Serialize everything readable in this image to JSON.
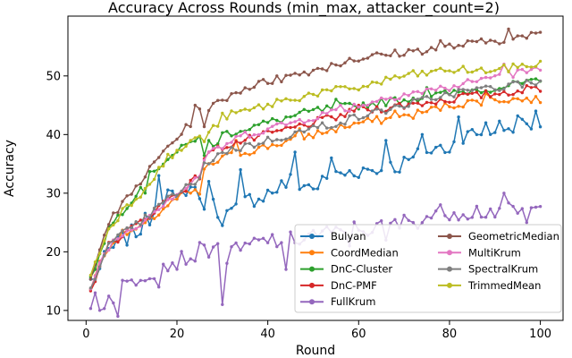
{
  "chart_data": {
    "type": "line",
    "title": "Accuracy Across Rounds (min_max, attacker_count=2)",
    "xlabel": "Round",
    "ylabel": "Accuracy",
    "xlim": [
      -4,
      105
    ],
    "ylim": [
      8.3,
      60.2
    ],
    "xticks": [
      0,
      20,
      40,
      60,
      80,
      100
    ],
    "yticks": [
      10,
      20,
      30,
      40,
      50
    ],
    "grid": false,
    "legend_position": "lower-right",
    "legend_columns": 2,
    "series": [
      {
        "name": "Bulyan",
        "color": "#1f77b4",
        "anchors": [
          [
            1,
            15
          ],
          [
            3,
            17
          ],
          [
            5,
            20
          ],
          [
            8,
            22
          ],
          [
            12,
            24
          ],
          [
            15,
            27
          ],
          [
            18,
            30
          ],
          [
            20,
            28
          ],
          [
            22,
            31
          ],
          [
            25,
            30
          ],
          [
            26,
            26
          ],
          [
            28,
            28
          ],
          [
            30,
            26
          ],
          [
            33,
            27
          ],
          [
            36,
            29
          ],
          [
            40,
            30
          ],
          [
            45,
            32
          ],
          [
            50,
            31
          ],
          [
            55,
            33
          ],
          [
            60,
            34
          ],
          [
            65,
            34
          ],
          [
            70,
            35
          ],
          [
            75,
            37
          ],
          [
            80,
            38
          ],
          [
            85,
            40
          ],
          [
            90,
            41
          ],
          [
            95,
            42
          ],
          [
            100,
            42
          ]
        ],
        "spikes": [
          [
            16,
            33
          ],
          [
            24,
            31
          ],
          [
            27,
            32
          ],
          [
            34,
            34
          ],
          [
            46,
            37
          ],
          [
            54,
            36
          ],
          [
            66,
            39
          ],
          [
            74,
            40
          ],
          [
            82,
            43
          ],
          [
            88,
            42
          ],
          [
            93,
            41
          ],
          [
            99,
            44
          ]
        ]
      },
      {
        "name": "CoordMedian",
        "color": "#ff7f0e",
        "anchors": [
          [
            1,
            14
          ],
          [
            3,
            18
          ],
          [
            5,
            21
          ],
          [
            8,
            23
          ],
          [
            12,
            24
          ],
          [
            15,
            26
          ],
          [
            18,
            28
          ],
          [
            22,
            30
          ],
          [
            25,
            30
          ],
          [
            26,
            34
          ],
          [
            30,
            36
          ],
          [
            35,
            37
          ],
          [
            40,
            38
          ],
          [
            50,
            40
          ],
          [
            60,
            42
          ],
          [
            70,
            43
          ],
          [
            80,
            45
          ],
          [
            90,
            46
          ],
          [
            100,
            46
          ]
        ],
        "spikes": [
          [
            20,
            29
          ],
          [
            33,
            39
          ],
          [
            47,
            41
          ],
          [
            68,
            44
          ],
          [
            88,
            47
          ]
        ]
      },
      {
        "name": "DnC-Cluster",
        "color": "#2ca02c",
        "anchors": [
          [
            1,
            15
          ],
          [
            3,
            20
          ],
          [
            5,
            24
          ],
          [
            8,
            27
          ],
          [
            12,
            31
          ],
          [
            15,
            34
          ],
          [
            18,
            36
          ],
          [
            22,
            38
          ],
          [
            25,
            40
          ],
          [
            26,
            36
          ],
          [
            28,
            38
          ],
          [
            30,
            40
          ],
          [
            35,
            41
          ],
          [
            40,
            42
          ],
          [
            50,
            44
          ],
          [
            60,
            45
          ],
          [
            70,
            46
          ],
          [
            80,
            47
          ],
          [
            90,
            48
          ],
          [
            100,
            49
          ]
        ],
        "spikes": [
          [
            13,
            30
          ],
          [
            27,
            39
          ],
          [
            55,
            46
          ],
          [
            75,
            48
          ],
          [
            95,
            49
          ]
        ]
      },
      {
        "name": "DnC-PMF",
        "color": "#d62728",
        "anchors": [
          [
            1,
            13
          ],
          [
            3,
            18
          ],
          [
            5,
            21
          ],
          [
            8,
            23
          ],
          [
            12,
            25
          ],
          [
            15,
            27
          ],
          [
            18,
            29
          ],
          [
            22,
            31
          ],
          [
            25,
            33
          ],
          [
            26,
            36
          ],
          [
            30,
            38
          ],
          [
            35,
            39
          ],
          [
            40,
            40
          ],
          [
            50,
            42
          ],
          [
            60,
            44
          ],
          [
            70,
            45
          ],
          [
            80,
            46
          ],
          [
            90,
            47
          ],
          [
            100,
            48
          ]
        ],
        "spikes": [
          [
            27,
            37
          ],
          [
            60,
            45
          ],
          [
            83,
            47
          ]
        ]
      },
      {
        "name": "FullKrum",
        "color": "#9467bd",
        "anchors": [
          [
            1,
            10
          ],
          [
            3,
            11
          ],
          [
            5,
            12
          ],
          [
            8,
            14
          ],
          [
            12,
            16
          ],
          [
            15,
            17
          ],
          [
            18,
            18
          ],
          [
            22,
            19
          ],
          [
            25,
            20
          ],
          [
            28,
            21
          ],
          [
            31,
            19
          ],
          [
            33,
            20
          ],
          [
            36,
            21
          ],
          [
            40,
            22
          ],
          [
            45,
            22
          ],
          [
            50,
            23
          ],
          [
            55,
            23
          ],
          [
            60,
            24
          ],
          [
            65,
            24
          ],
          [
            70,
            25
          ],
          [
            75,
            26
          ],
          [
            80,
            27
          ],
          [
            85,
            27
          ],
          [
            90,
            27
          ],
          [
            95,
            27
          ],
          [
            100,
            27
          ]
        ],
        "spikes": [
          [
            2,
            13
          ],
          [
            7,
            9
          ],
          [
            16,
            14
          ],
          [
            30,
            11
          ],
          [
            44,
            17
          ],
          [
            58,
            21
          ],
          [
            66,
            22
          ],
          [
            72,
            25
          ],
          [
            92,
            30
          ],
          [
            97,
            25
          ]
        ]
      },
      {
        "name": "GeometricMedian",
        "color": "#8c564b",
        "anchors": [
          [
            1,
            16
          ],
          [
            3,
            21
          ],
          [
            5,
            25
          ],
          [
            8,
            28
          ],
          [
            12,
            32
          ],
          [
            15,
            35
          ],
          [
            18,
            38
          ],
          [
            22,
            41
          ],
          [
            25,
            44
          ],
          [
            26,
            42
          ],
          [
            28,
            45
          ],
          [
            30,
            46
          ],
          [
            35,
            48
          ],
          [
            40,
            49
          ],
          [
            50,
            51
          ],
          [
            60,
            53
          ],
          [
            70,
            54
          ],
          [
            80,
            55
          ],
          [
            90,
            56
          ],
          [
            100,
            57
          ]
        ],
        "spikes": [
          [
            24,
            45
          ],
          [
            42,
            50
          ],
          [
            58,
            53
          ],
          [
            78,
            56
          ],
          [
            93,
            58
          ]
        ]
      },
      {
        "name": "MultiKrum",
        "color": "#e377c2",
        "anchors": [
          [
            1,
            14
          ],
          [
            3,
            18
          ],
          [
            5,
            21
          ],
          [
            8,
            23
          ],
          [
            12,
            25
          ],
          [
            15,
            27
          ],
          [
            18,
            29
          ],
          [
            22,
            31
          ],
          [
            25,
            33
          ],
          [
            26,
            36
          ],
          [
            30,
            38
          ],
          [
            35,
            40
          ],
          [
            40,
            41
          ],
          [
            50,
            43
          ],
          [
            60,
            45
          ],
          [
            70,
            47
          ],
          [
            80,
            48
          ],
          [
            90,
            50
          ],
          [
            100,
            51
          ]
        ],
        "spikes": [
          [
            27,
            37
          ],
          [
            56,
            45
          ],
          [
            74,
            47
          ],
          [
            92,
            52
          ]
        ]
      },
      {
        "name": "SpectralKrum",
        "color": "#7f7f7f",
        "anchors": [
          [
            1,
            14
          ],
          [
            3,
            18
          ],
          [
            5,
            21
          ],
          [
            8,
            23
          ],
          [
            12,
            25
          ],
          [
            15,
            27
          ],
          [
            18,
            29
          ],
          [
            22,
            31
          ],
          [
            25,
            32
          ],
          [
            26,
            35
          ],
          [
            30,
            37
          ],
          [
            35,
            38
          ],
          [
            40,
            39
          ],
          [
            50,
            41
          ],
          [
            60,
            43
          ],
          [
            70,
            45
          ],
          [
            80,
            47
          ],
          [
            90,
            48
          ],
          [
            100,
            49
          ]
        ],
        "spikes": [
          [
            52,
            42
          ],
          [
            76,
            46
          ],
          [
            95,
            49
          ]
        ]
      },
      {
        "name": "TrimmedMean",
        "color": "#bcbd22",
        "anchors": [
          [
            1,
            16
          ],
          [
            3,
            20
          ],
          [
            5,
            24
          ],
          [
            8,
            27
          ],
          [
            12,
            30
          ],
          [
            15,
            33
          ],
          [
            18,
            36
          ],
          [
            22,
            38
          ],
          [
            25,
            40
          ],
          [
            26,
            39
          ],
          [
            28,
            41
          ],
          [
            30,
            43
          ],
          [
            35,
            44
          ],
          [
            40,
            45
          ],
          [
            50,
            47
          ],
          [
            60,
            48
          ],
          [
            70,
            50
          ],
          [
            80,
            51
          ],
          [
            90,
            51
          ],
          [
            100,
            52
          ]
        ],
        "spikes": [
          [
            23,
            39
          ],
          [
            42,
            46
          ],
          [
            68,
            50
          ],
          [
            86,
            51
          ],
          [
            96,
            52
          ]
        ]
      }
    ]
  }
}
